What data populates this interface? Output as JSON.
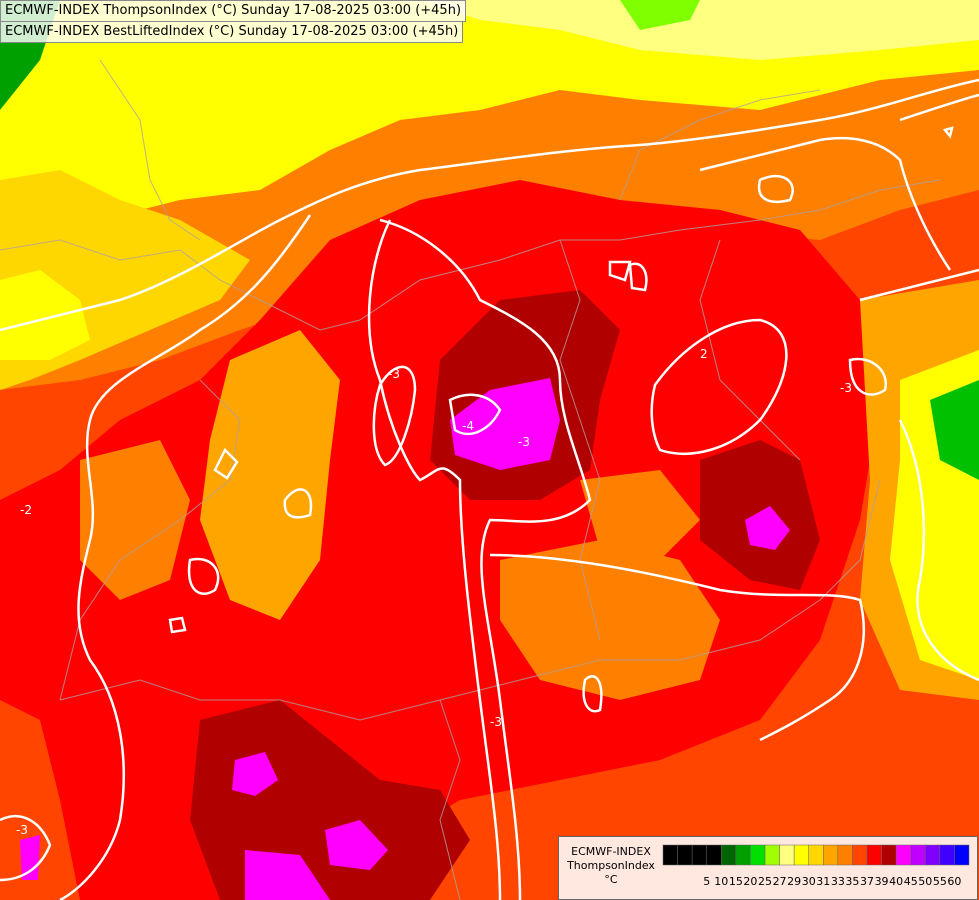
{
  "header": {
    "line1": "ECMWF-INDEX ThompsonIndex (°C) Sunday 17-08-2025 03:00 (+45h)",
    "line2": "ECMWF-INDEX BestLiftedIndex (°C) Sunday 17-08-2025 03:00 (+45h)"
  },
  "legend": {
    "source": "ECMWF-INDEX",
    "variable": "ThompsonIndex",
    "unit": "°C",
    "colors": [
      "#000000",
      "#000000",
      "#000000",
      "#000000",
      "#006400",
      "#00a000",
      "#00e000",
      "#a0ff00",
      "#ffff80",
      "#ffff00",
      "#ffd700",
      "#ffa500",
      "#ff7f00",
      "#ff4500",
      "#ff0000",
      "#b00000",
      "#ff00ff",
      "#c000ff",
      "#8000ff",
      "#4000ff",
      "#0000ff"
    ],
    "ticks": [
      "5",
      "10",
      "15",
      "20",
      "25",
      "27",
      "29",
      "30",
      "31",
      "33",
      "35",
      "37",
      "39",
      "40",
      "45",
      "50",
      "55",
      "60"
    ]
  },
  "contour_labels": [
    "-3",
    "-4",
    "-2",
    "-3",
    "2",
    "-3",
    "-3",
    "-3"
  ]
}
